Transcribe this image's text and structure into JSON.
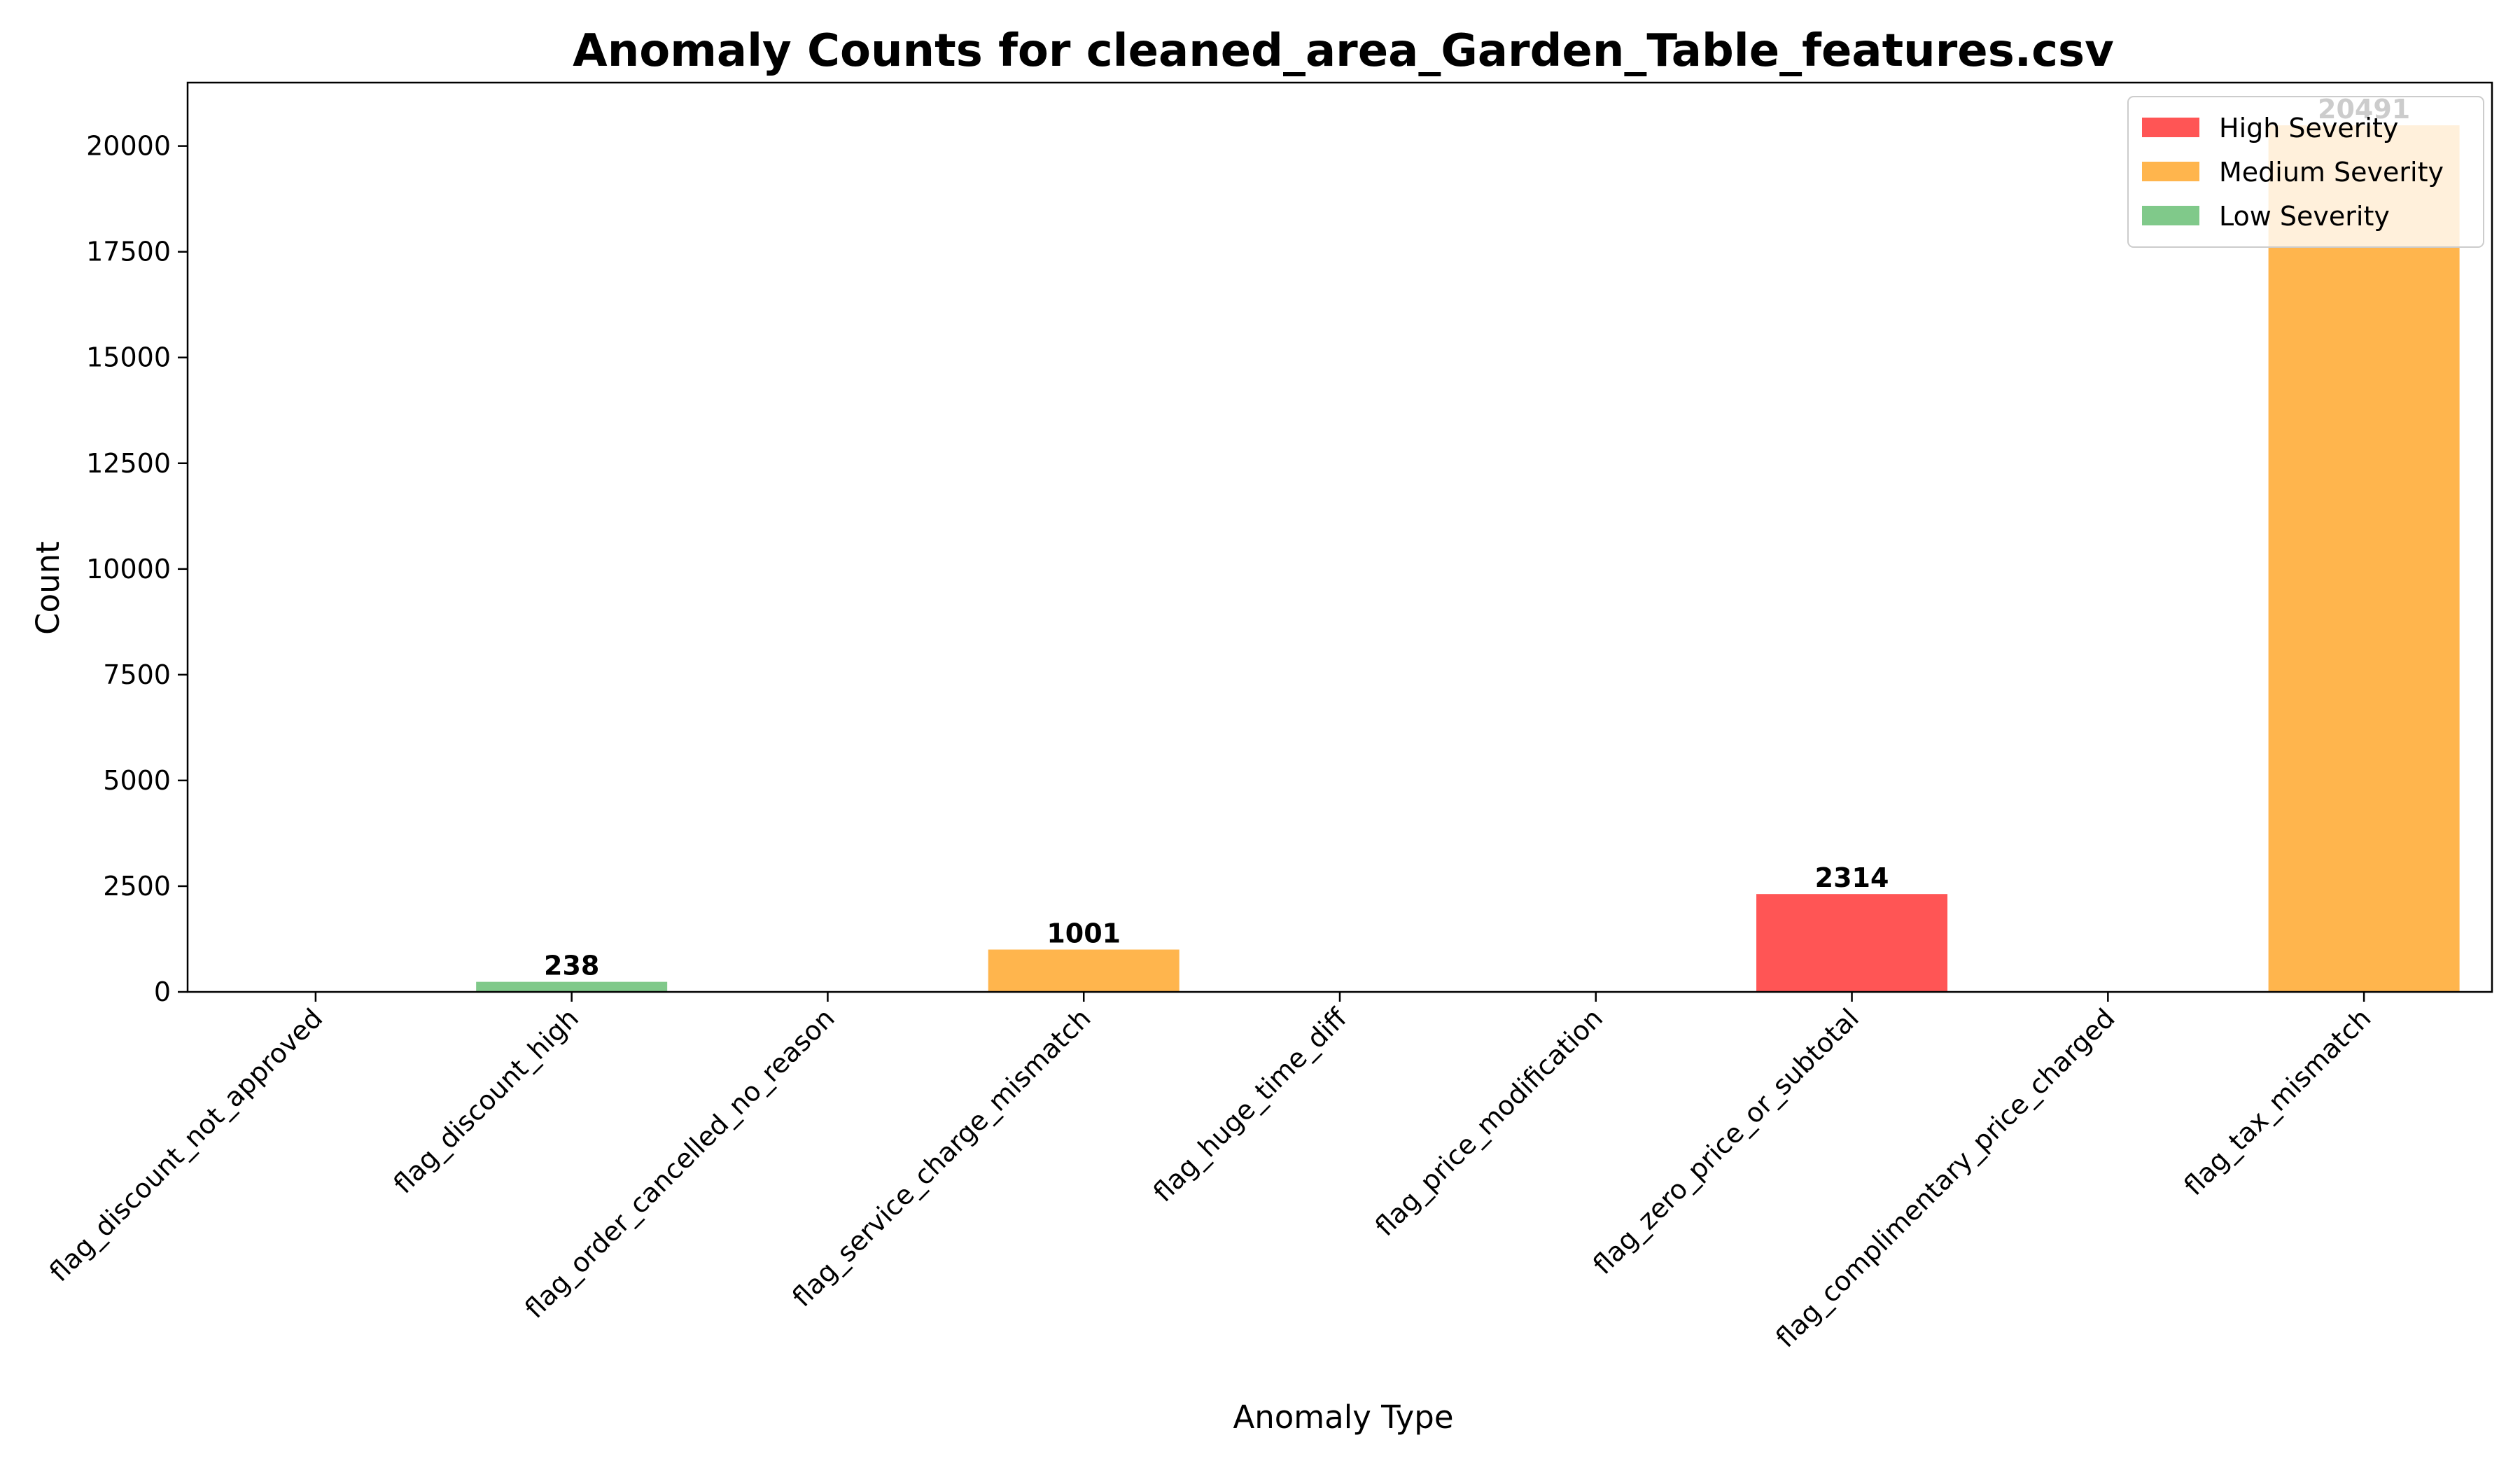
{
  "chart_data": {
    "type": "bar",
    "title": "Anomaly Counts for cleaned_area_Garden_Table_features.csv",
    "xlabel": "Anomaly Type",
    "ylabel": "Count",
    "ylim": [
      0,
      21500
    ],
    "yticks": [
      0,
      2500,
      5000,
      7500,
      10000,
      12500,
      15000,
      17500,
      20000
    ],
    "grid": false,
    "legend_position": "top-right",
    "legend": [
      {
        "label": "High Severity",
        "color": "#ff5555"
      },
      {
        "label": "Medium Severity",
        "color": "#ffb54d"
      },
      {
        "label": "Low Severity",
        "color": "#80c98a"
      }
    ],
    "categories": [
      "flag_discount_not_approved",
      "flag_discount_high",
      "flag_order_cancelled_no_reason",
      "flag_service_charge_mismatch",
      "flag_huge_time_diff",
      "flag_price_modification",
      "flag_zero_price_or_subtotal",
      "flag_complimentary_price_charged",
      "flag_tax_mismatch"
    ],
    "values": [
      0,
      238,
      0,
      1001,
      0,
      0,
      2314,
      0,
      20491
    ],
    "severity": [
      "",
      "Low Severity",
      "",
      "Medium Severity",
      "",
      "",
      "High Severity",
      "",
      "Medium Severity"
    ],
    "data_labels": [
      "",
      "238",
      "",
      "1001",
      "",
      "",
      "2314",
      "",
      "20491"
    ]
  }
}
